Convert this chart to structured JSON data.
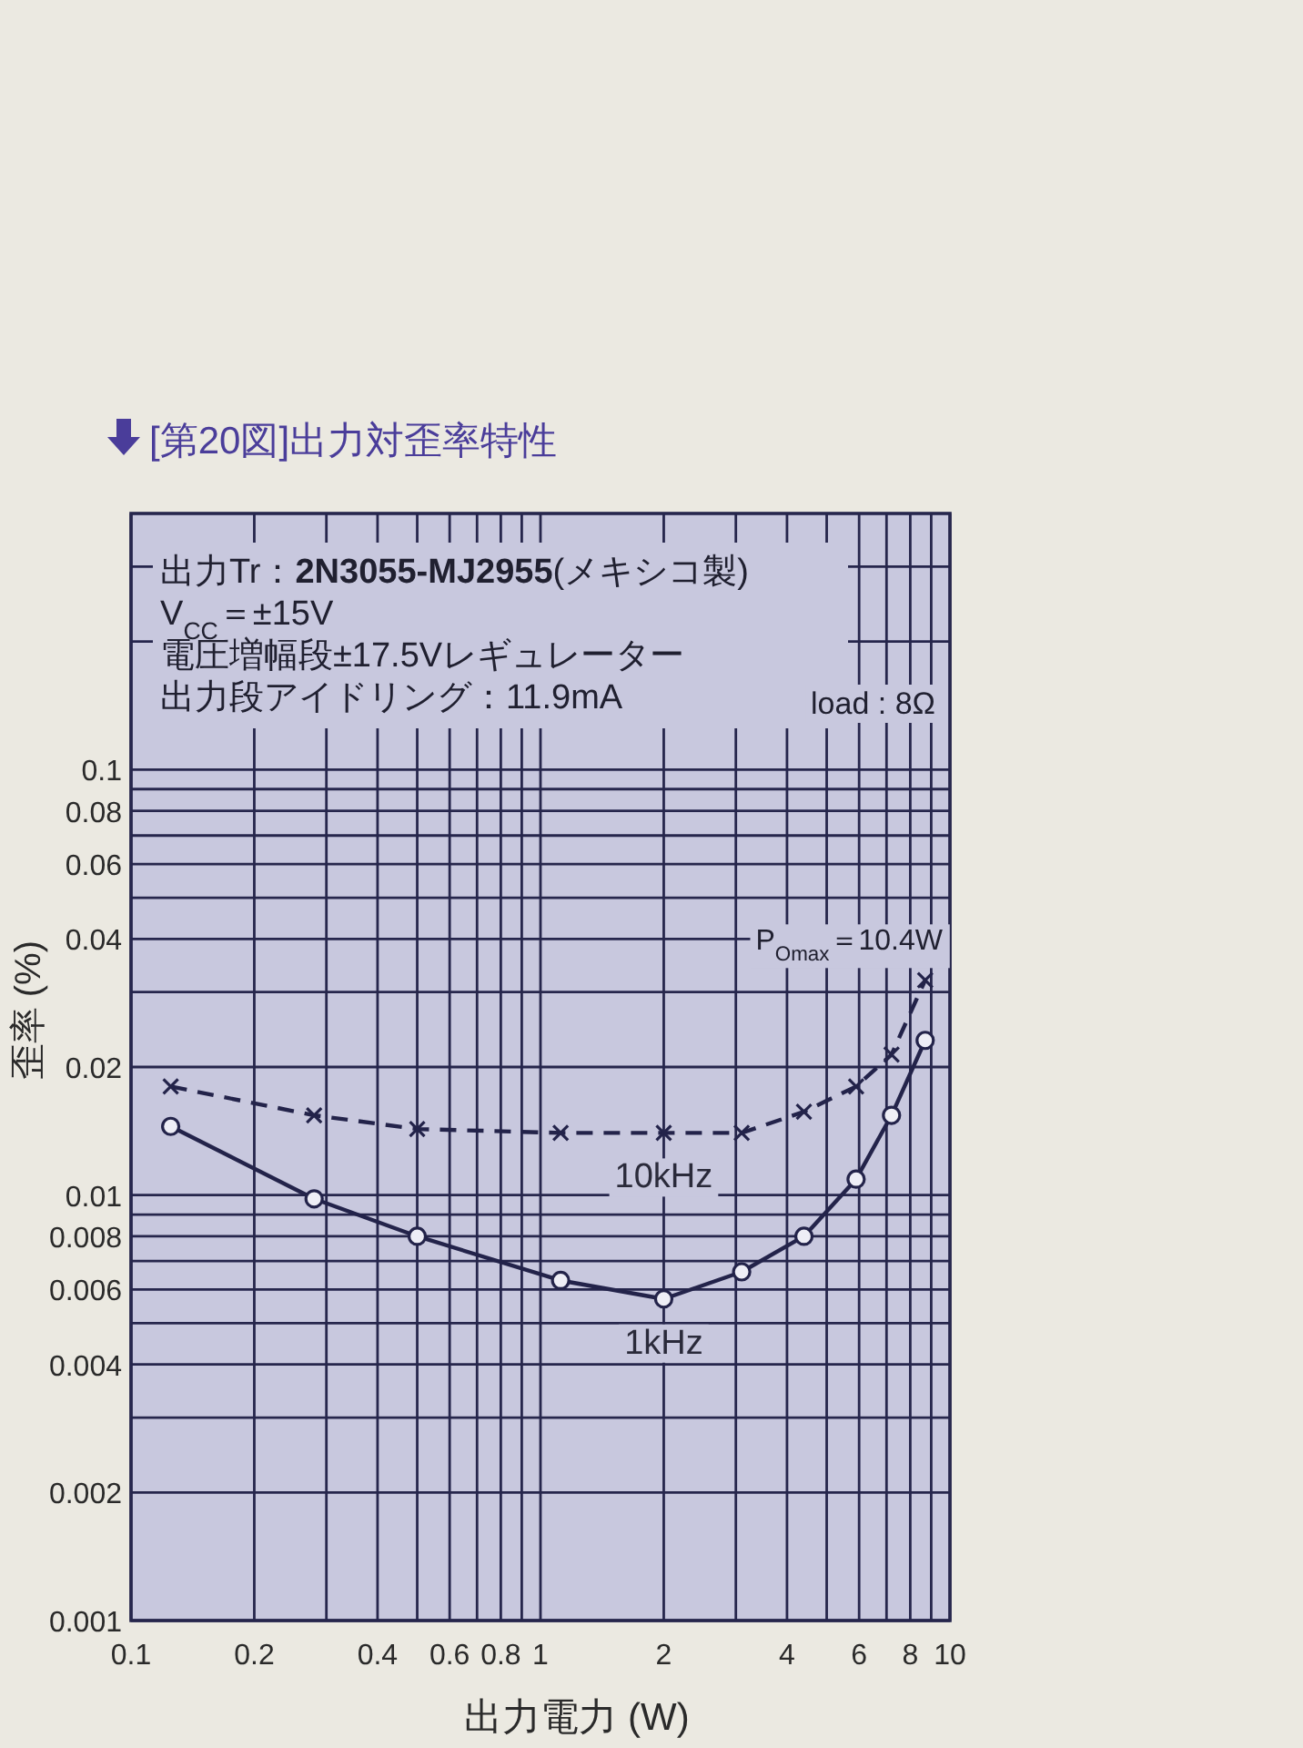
{
  "chart_data": {
    "type": "line",
    "title": "[第20図]出力対歪率特性",
    "xlabel": "出力電力 (W)",
    "ylabel": "歪率 (%)",
    "annotations": [
      "出力Tr：**2N3055-MJ2955**(メキシコ製)",
      "V$_{CC}$＝±15V",
      "電圧増幅段±17.5Vレギュレーター",
      "出力段アイドリング：11.9mA",
      "load : 8Ω",
      "P$_{Omax}$＝10.4W"
    ],
    "log": "xy",
    "xlim": [
      0.1,
      10
    ],
    "ylim": [
      0.001,
      0.4
    ],
    "xticks": [
      0.1,
      0.2,
      {
        "value": 0.3,
        "label": null
      },
      0.4,
      {
        "value": 0.5,
        "label": null
      },
      0.6,
      {
        "value": 0.7,
        "label": null
      },
      0.8,
      {
        "value": 0.9,
        "label": null
      },
      1,
      2,
      {
        "value": 3,
        "label": null
      },
      4,
      {
        "value": 5,
        "label": null
      },
      6,
      {
        "value": 7,
        "label": null
      },
      8,
      {
        "value": 9,
        "label": null
      },
      10
    ],
    "yticks": [
      0.001,
      0.002,
      {
        "value": 0.003,
        "label": null
      },
      0.004,
      {
        "value": 0.005,
        "label": null
      },
      0.006,
      {
        "value": 0.007,
        "label": null
      },
      0.008,
      {
        "value": 0.009,
        "label": null
      },
      0.01,
      0.02,
      {
        "value": 0.03,
        "label": null
      },
      0.04,
      {
        "value": 0.05,
        "label": null
      },
      0.06,
      {
        "value": 0.07,
        "label": null
      },
      0.08,
      {
        "value": 0.09,
        "label": null
      },
      0.1,
      {
        "value": 0.2,
        "label": null
      },
      {
        "value": 0.3,
        "label": null
      }
    ],
    "grid": true,
    "x": [
      0.125,
      0.28,
      0.5,
      1.12,
      2,
      3.1,
      4.4,
      5.9,
      7.2,
      8.7
    ],
    "series": [
      {
        "name": "10kHz",
        "color": "#23234a",
        "marker": "cross",
        "line_style": "dashed",
        "values": [
          0.018,
          0.0154,
          0.0143,
          0.014,
          0.014,
          0.014,
          0.0157,
          0.018,
          0.0214,
          0.032
        ]
      },
      {
        "name": "1kHz",
        "color": "#23234a",
        "marker": "circle",
        "line_style": "solid",
        "values": [
          0.0145,
          0.0098,
          0.008,
          0.0063,
          0.0057,
          0.0066,
          0.008,
          0.0109,
          0.0154,
          0.0231
        ]
      }
    ]
  }
}
